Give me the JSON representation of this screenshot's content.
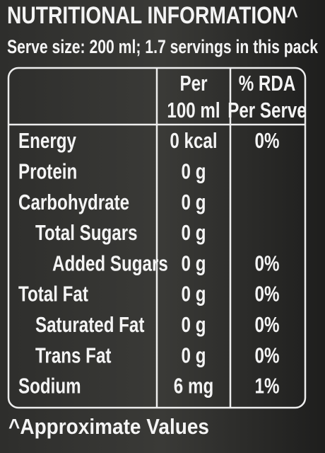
{
  "header": {
    "title": "NUTRITIONAL INFORMATION^",
    "subtitle": "Serve size: 200 ml; 1.7 servings in this pack"
  },
  "table": {
    "headers": [
      [
        "Per",
        "100 ml"
      ],
      [
        "% RDA",
        "Per Serve"
      ]
    ],
    "rows": [
      {
        "name": "Energy",
        "per_100ml": "0 kcal",
        "rda": "0%"
      },
      {
        "name": "Protein",
        "per_100ml": "0 g"
      },
      {
        "name": "Carbohydrate",
        "per_100ml": "0 g"
      },
      {
        "name": "Total Sugars",
        "per_100ml": "0 g"
      },
      {
        "name": "Added Sugars",
        "per_100ml": "0 g",
        "rda": "0%"
      },
      {
        "name": "Total Fat",
        "per_100ml": "0 g",
        "rda": "0%"
      },
      {
        "name": "Saturated Fat",
        "per_100ml": "0 g",
        "rda": "0%"
      },
      {
        "name": "Trans Fat",
        "per_100ml": "0 g",
        "rda": "0%"
      },
      {
        "name": "Sodium",
        "per_100ml": "6 mg",
        "rda": "1%"
      }
    ]
  },
  "footer": "^Approximate Values"
}
